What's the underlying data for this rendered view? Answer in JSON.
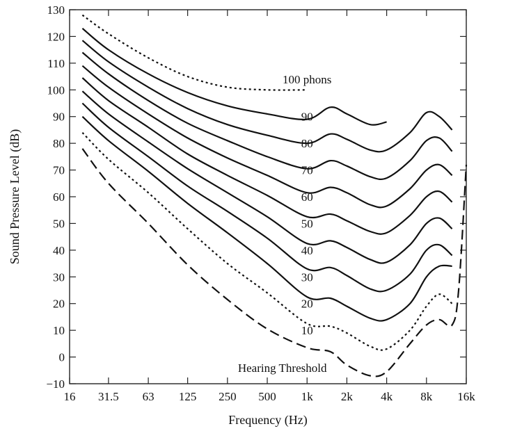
{
  "chart_data": {
    "type": "line",
    "title": "",
    "xlabel": "Frequency (Hz)",
    "ylabel": "Sound Pressure Level (dB)",
    "x_scale": "log",
    "xlim": [
      16,
      16000
    ],
    "ylim": [
      -10,
      130
    ],
    "x_ticks": [
      {
        "value": 16,
        "label": "16"
      },
      {
        "value": 31.5,
        "label": "31.5"
      },
      {
        "value": 63,
        "label": "63"
      },
      {
        "value": 125,
        "label": "125"
      },
      {
        "value": 250,
        "label": "250"
      },
      {
        "value": 500,
        "label": "500"
      },
      {
        "value": 1000,
        "label": "1k"
      },
      {
        "value": 2000,
        "label": "2k"
      },
      {
        "value": 4000,
        "label": "4k"
      },
      {
        "value": 8000,
        "label": "8k"
      },
      {
        "value": 16000,
        "label": "16k"
      }
    ],
    "y_ticks": [
      {
        "value": 130,
        "label": "130"
      },
      {
        "value": 120,
        "label": "120"
      },
      {
        "value": 110,
        "label": "110"
      },
      {
        "value": 100,
        "label": "100"
      },
      {
        "value": 90,
        "label": "90"
      },
      {
        "value": 80,
        "label": "80"
      },
      {
        "value": 70,
        "label": "70"
      },
      {
        "value": 60,
        "label": "60"
      },
      {
        "value": 50,
        "label": "50"
      },
      {
        "value": 40,
        "label": "40"
      },
      {
        "value": 30,
        "label": "30"
      },
      {
        "value": 20,
        "label": "20"
      },
      {
        "value": 10,
        "label": "10"
      },
      {
        "value": 0,
        "label": "0"
      },
      {
        "value": -10,
        "label": "−10"
      }
    ],
    "grid": false,
    "series": [
      {
        "name": "100 phons",
        "style": "dotted",
        "x": [
          20,
          31.5,
          63,
          125,
          250,
          500,
          1000
        ],
        "y": [
          128,
          121,
          112,
          105,
          101,
          100,
          100
        ]
      },
      {
        "name": "90",
        "style": "solid",
        "x": [
          20,
          31.5,
          63,
          125,
          250,
          500,
          1000,
          1500,
          2000,
          3000,
          4000
        ],
        "y": [
          123,
          115,
          106,
          99,
          94,
          91,
          89,
          93.5,
          91,
          87,
          88
        ]
      },
      {
        "name": "80",
        "style": "solid",
        "x": [
          20,
          31.5,
          63,
          125,
          250,
          500,
          1000,
          1500,
          2000,
          3000,
          4000,
          6000,
          8000,
          10000,
          12500
        ],
        "y": [
          118.5,
          110.5,
          101,
          93,
          87,
          83,
          80,
          83.5,
          81.5,
          77.5,
          77.5,
          84,
          91.5,
          90,
          85
        ]
      },
      {
        "name": "70",
        "style": "solid",
        "x": [
          20,
          31.5,
          63,
          125,
          250,
          500,
          1000,
          1500,
          2000,
          3000,
          4000,
          6000,
          8000,
          10000,
          12500
        ],
        "y": [
          114,
          106,
          96,
          87.5,
          81,
          75,
          70.5,
          73.5,
          71.5,
          67.5,
          67,
          73.5,
          81,
          82,
          77
        ]
      },
      {
        "name": "60",
        "style": "solid",
        "x": [
          20,
          31.5,
          63,
          125,
          250,
          500,
          1000,
          1500,
          2000,
          3000,
          4000,
          6000,
          8000,
          10000,
          12500
        ],
        "y": [
          109,
          101,
          91,
          82,
          74.5,
          68,
          61.5,
          63.5,
          61.5,
          57,
          56.5,
          63,
          70,
          72,
          68
        ]
      },
      {
        "name": "50",
        "style": "solid",
        "x": [
          20,
          31.5,
          63,
          125,
          250,
          500,
          1000,
          1500,
          2000,
          3000,
          4000,
          6000,
          8000,
          10000,
          12500
        ],
        "y": [
          104.5,
          96,
          86,
          76,
          68,
          60.5,
          52.5,
          53.5,
          51,
          47,
          46.5,
          53,
          60,
          62,
          58
        ]
      },
      {
        "name": "40",
        "style": "solid",
        "x": [
          20,
          31.5,
          63,
          125,
          250,
          500,
          1000,
          1500,
          2000,
          3000,
          4000,
          6000,
          8000,
          10000,
          12500
        ],
        "y": [
          99.5,
          91,
          80.5,
          70.5,
          61.5,
          52.5,
          42.5,
          43.5,
          41,
          36.5,
          35.5,
          42,
          50,
          52,
          48
        ]
      },
      {
        "name": "30",
        "style": "solid",
        "x": [
          20,
          31.5,
          63,
          125,
          250,
          500,
          1000,
          1500,
          2000,
          3000,
          4000,
          6000,
          8000,
          10000,
          12500
        ],
        "y": [
          95,
          86,
          75,
          64,
          54.5,
          44.5,
          33,
          33.5,
          30.5,
          25.5,
          25,
          31,
          40,
          42,
          38
        ]
      },
      {
        "name": "20",
        "style": "solid",
        "x": [
          20,
          31.5,
          63,
          125,
          250,
          500,
          1000,
          1500,
          2000,
          3000,
          4000,
          6000,
          8000,
          10000,
          12500
        ],
        "y": [
          90,
          81,
          69.5,
          57.5,
          46.5,
          35,
          22.5,
          22,
          19,
          14.5,
          14,
          20,
          30,
          34,
          34
        ]
      },
      {
        "name": "10",
        "style": "dotted",
        "x": [
          20,
          31.5,
          63,
          125,
          250,
          500,
          1000,
          1500,
          2000,
          3000,
          4000,
          6000,
          8000,
          10000,
          12500
        ],
        "y": [
          84,
          74,
          61.5,
          48,
          35,
          24,
          12.5,
          11.5,
          9,
          4,
          3,
          10,
          19,
          23.5,
          20
        ]
      },
      {
        "name": "Hearing Threshold",
        "style": "dashed",
        "x": [
          20,
          31.5,
          63,
          125,
          250,
          500,
          1000,
          1500,
          2000,
          3000,
          4000,
          6000,
          8000,
          10000,
          12500,
          14000,
          16000
        ],
        "y": [
          78,
          65,
          50,
          34.5,
          21.5,
          10.5,
          3.5,
          2,
          -3,
          -7,
          -5.5,
          5,
          12,
          14,
          12,
          25,
          72
        ]
      }
    ],
    "labels": [
      {
        "text": "100 phons"
      },
      {
        "text": "90"
      },
      {
        "text": "80"
      },
      {
        "text": "70"
      },
      {
        "text": "60"
      },
      {
        "text": "50"
      },
      {
        "text": "40"
      },
      {
        "text": "30"
      },
      {
        "text": "20"
      },
      {
        "text": "10"
      },
      {
        "text": "Hearing Threshold"
      }
    ]
  }
}
